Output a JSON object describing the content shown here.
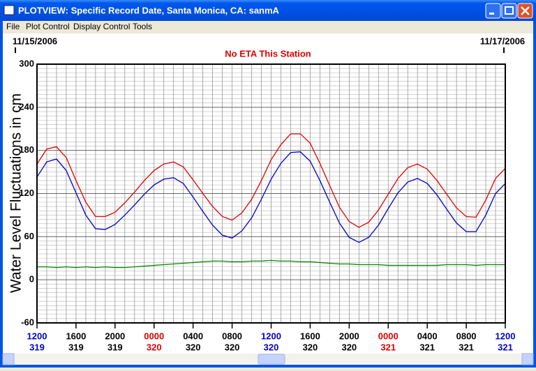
{
  "window": {
    "title": "PLOTVIEW: Specific Record Date, Santa Monica, CA: sanmA",
    "menu": [
      "File",
      "Plot Control",
      "Display Control",
      "Tools"
    ]
  },
  "chart_data": {
    "type": "line",
    "title": "No ETA This Station",
    "start_date": "11/15/2006",
    "end_date": "11/17/2006",
    "y_label": "Water Level Fluctuations in cm",
    "x": [
      0,
      1,
      2,
      3,
      4,
      5,
      6,
      7,
      8,
      9,
      10,
      11,
      12,
      13,
      14,
      15,
      16,
      17,
      18,
      19,
      20,
      21,
      22,
      23,
      24,
      25,
      26,
      27,
      28,
      29,
      30,
      31,
      32,
      33,
      34,
      35,
      36,
      37,
      38,
      39,
      40,
      41,
      42,
      43,
      44,
      45,
      46,
      47,
      48
    ],
    "xlim": [
      0,
      48
    ],
    "xticks": [
      {
        "value": 0,
        "label": "1200"
      },
      {
        "value": 4,
        "label": "1600"
      },
      {
        "value": 8,
        "label": "2000"
      },
      {
        "value": 12,
        "label": "0000"
      },
      {
        "value": 16,
        "label": "0400"
      },
      {
        "value": 20,
        "label": "0800"
      },
      {
        "value": 24,
        "label": "1200"
      },
      {
        "value": 28,
        "label": "1600"
      },
      {
        "value": 32,
        "label": "2000"
      },
      {
        "value": 36,
        "label": "0000"
      },
      {
        "value": 40,
        "label": "0400"
      },
      {
        "value": 44,
        "label": "0800"
      },
      {
        "value": 48,
        "label": "1200"
      }
    ],
    "xtick_days": [
      "319",
      "319",
      "319",
      "320",
      "320",
      "320",
      "320",
      "320",
      "320",
      "321",
      "321",
      "321",
      "321"
    ],
    "xtick_colors": [
      "#0000cc",
      "#000000",
      "#000000",
      "#dd0000",
      "#000000",
      "#000000",
      "#0000cc",
      "#000000",
      "#000000",
      "#dd0000",
      "#000000",
      "#000000",
      "#0000cc"
    ],
    "ylim": [
      -60,
      300
    ],
    "yticks": [
      -60,
      0,
      60,
      120,
      180,
      240,
      300
    ],
    "grid": true,
    "series": [
      {
        "color": "#e00000",
        "values": [
          161,
          182,
          185,
          170,
          138,
          108,
          88,
          88,
          94,
          107,
          122,
          138,
          152,
          161,
          164,
          157,
          139,
          120,
          102,
          88,
          83,
          93,
          112,
          138,
          167,
          188,
          203,
          203,
          190,
          162,
          131,
          101,
          81,
          73,
          80,
          97,
          119,
          141,
          156,
          161,
          154,
          138,
          119,
          100,
          88,
          87,
          111,
          141,
          155
        ]
      },
      {
        "color": "#0000c0",
        "values": [
          143,
          164,
          168,
          152,
          121,
          90,
          71,
          70,
          77,
          90,
          104,
          119,
          132,
          140,
          142,
          134,
          115,
          95,
          76,
          62,
          58,
          68,
          86,
          112,
          140,
          162,
          177,
          178,
          165,
          138,
          108,
          79,
          59,
          52,
          59,
          76,
          99,
          121,
          136,
          141,
          134,
          118,
          98,
          79,
          67,
          67,
          90,
          120,
          134
        ]
      },
      {
        "color": "#008800",
        "values": [
          18,
          18,
          17,
          18,
          17,
          18,
          17,
          18,
          17,
          17,
          18,
          19,
          20,
          21,
          22,
          23,
          24,
          25,
          26,
          26,
          25,
          25,
          26,
          26,
          27,
          26,
          26,
          25,
          25,
          24,
          23,
          22,
          22,
          21,
          21,
          21,
          20,
          20,
          20,
          20,
          20,
          20,
          21,
          21,
          21,
          20,
          21,
          21,
          21
        ]
      }
    ]
  }
}
